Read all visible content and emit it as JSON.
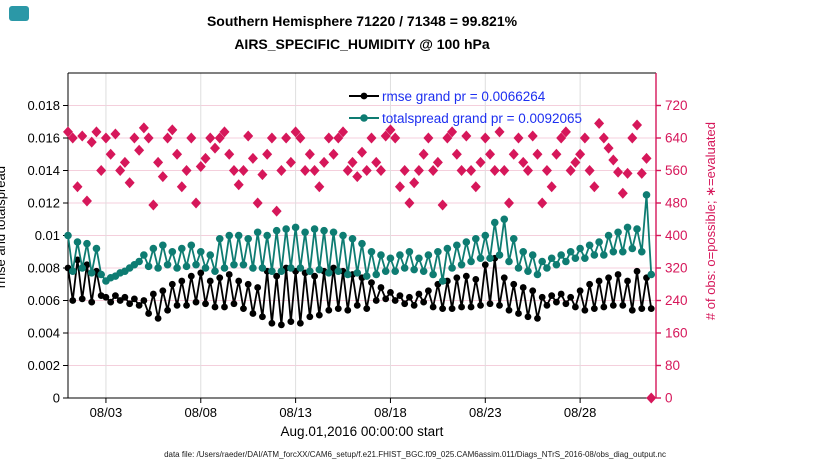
{
  "window": {
    "corner_badge_color": "#2b98a7"
  },
  "chart_data": {
    "type": "line",
    "title": "Southern Hemisphere 71220 / 71348 = 99.821%",
    "subtitle": "AIRS_SPECIFIC_HUMIDITY @ 100 hPa",
    "xlabel": "Aug.01,2016 00:00:00 start",
    "ylabel_left": "rmse and totalspread",
    "ylabel_right": "# of obs: o=possible; ∗=evaluated",
    "caption": "data file: /Users/raeder/DAI/ATM_forcXX/CAM6_setup/f.e21.FHIST_BGC.f09_025.CAM6assim.011/Diags_NTrS_2016-08/obs_diag_output.nc",
    "x_start": "Aug 1, 2016 00:00",
    "time_step_days": 0.25,
    "xlim_days": 31,
    "grid": true,
    "legend_position": "top-center-inside",
    "legend_text_color": "#1d2ff0",
    "axis_color_left": "#000000",
    "axis_color_right": "#d6175a",
    "grid_color_horizontal": "#f4cfdc",
    "grid_color_vertical": "#dedede",
    "left_ylim": [
      0,
      0.02
    ],
    "left_ytick_values": [
      0,
      0.002,
      0.004,
      0.006,
      0.008,
      0.01,
      0.012,
      0.014,
      0.016,
      0.018
    ],
    "left_ytick_labels": [
      "0",
      "0.002",
      "0.004",
      "0.006",
      "0.008",
      "0.01",
      "0.012",
      "0.014",
      "0.016",
      "0.018"
    ],
    "right_ylim": [
      0,
      800
    ],
    "right_ytick_values": [
      0,
      80,
      160,
      240,
      320,
      400,
      480,
      560,
      640,
      720
    ],
    "right_ytick_labels": [
      "0",
      "80",
      "160",
      "240",
      "320",
      "400",
      "480",
      "560",
      "640",
      "720"
    ],
    "xticks": [
      {
        "day": 2,
        "label": "08/03"
      },
      {
        "day": 7,
        "label": "08/08"
      },
      {
        "day": 12,
        "label": "08/13"
      },
      {
        "day": 17,
        "label": "08/18"
      },
      {
        "day": 22,
        "label": "08/23"
      },
      {
        "day": 27,
        "label": "08/28"
      }
    ],
    "series": [
      {
        "name": "rmse",
        "label": "rmse grand pr = 0.0066264",
        "color": "#000000",
        "marker": "circle",
        "marker_size": 3.4,
        "axis": "left",
        "values": [
          0.008,
          0.006,
          0.0085,
          0.0061,
          0.0082,
          0.0059,
          0.0078,
          0.0063,
          0.0062,
          0.0059,
          0.0063,
          0.006,
          0.0062,
          0.0058,
          0.0061,
          0.0057,
          0.006,
          0.0052,
          0.0064,
          0.0049,
          0.0066,
          0.0054,
          0.007,
          0.0057,
          0.0072,
          0.0057,
          0.0075,
          0.0059,
          0.0077,
          0.0058,
          0.0072,
          0.0056,
          0.0074,
          0.0056,
          0.0076,
          0.0058,
          0.0072,
          0.0055,
          0.007,
          0.0052,
          0.0068,
          0.005,
          0.0078,
          0.0046,
          0.0075,
          0.0045,
          0.008,
          0.0047,
          0.0078,
          0.0046,
          0.0077,
          0.005,
          0.0075,
          0.0051,
          0.0078,
          0.0054,
          0.008,
          0.0055,
          0.0078,
          0.0054,
          0.0076,
          0.0057,
          0.0074,
          0.0055,
          0.0071,
          0.006,
          0.0068,
          0.0061,
          0.0065,
          0.006,
          0.0063,
          0.0058,
          0.0062,
          0.0057,
          0.0064,
          0.0059,
          0.0066,
          0.0056,
          0.007,
          0.0055,
          0.0072,
          0.0055,
          0.0074,
          0.0056,
          0.0075,
          0.0056,
          0.0073,
          0.0057,
          0.0082,
          0.0058,
          0.0086,
          0.0057,
          0.0074,
          0.0054,
          0.007,
          0.0052,
          0.0068,
          0.005,
          0.0066,
          0.0049,
          0.0062,
          0.0057,
          0.0063,
          0.0059,
          0.0064,
          0.0058,
          0.0062,
          0.0056,
          0.0066,
          0.0054,
          0.007,
          0.0055,
          0.0072,
          0.0056,
          0.0074,
          0.0057,
          0.0076,
          0.0057,
          0.0072,
          0.0054,
          0.0078,
          0.0055,
          0.0074,
          0.0055
        ]
      },
      {
        "name": "totalspread",
        "label": "totalspread grand pr = 0.0092065",
        "color": "#0e7c72",
        "marker": "circle",
        "marker_size": 3.8,
        "axis": "left",
        "values": [
          0.01,
          0.0078,
          0.0096,
          0.008,
          0.0095,
          0.0077,
          0.0092,
          0.0076,
          0.0072,
          0.0074,
          0.0075,
          0.0077,
          0.0078,
          0.008,
          0.0082,
          0.0084,
          0.0088,
          0.0081,
          0.0092,
          0.008,
          0.0094,
          0.0082,
          0.009,
          0.008,
          0.0092,
          0.0081,
          0.0094,
          0.0082,
          0.009,
          0.008,
          0.0088,
          0.0078,
          0.0098,
          0.008,
          0.01,
          0.0082,
          0.01,
          0.0082,
          0.0098,
          0.008,
          0.0102,
          0.008,
          0.01,
          0.0078,
          0.0103,
          0.0078,
          0.0104,
          0.008,
          0.0105,
          0.008,
          0.0102,
          0.0078,
          0.0104,
          0.0079,
          0.0103,
          0.0077,
          0.0102,
          0.0078,
          0.01,
          0.0076,
          0.0098,
          0.0077,
          0.0095,
          0.0075,
          0.009,
          0.0076,
          0.0088,
          0.0078,
          0.0086,
          0.0078,
          0.0088,
          0.008,
          0.009,
          0.0079,
          0.0086,
          0.0078,
          0.0088,
          0.0076,
          0.009,
          0.0072,
          0.0092,
          0.008,
          0.0094,
          0.0082,
          0.0096,
          0.0084,
          0.0098,
          0.0086,
          0.01,
          0.0086,
          0.0108,
          0.0088,
          0.011,
          0.0084,
          0.0098,
          0.008,
          0.009,
          0.0078,
          0.0088,
          0.0076,
          0.0084,
          0.008,
          0.0086,
          0.0082,
          0.0088,
          0.0084,
          0.009,
          0.0086,
          0.0092,
          0.0086,
          0.0094,
          0.0088,
          0.0096,
          0.0088,
          0.01,
          0.009,
          0.0102,
          0.009,
          0.0105,
          0.0092,
          0.0104,
          0.009,
          0.0125,
          0.0076
        ]
      },
      {
        "name": "num-obs",
        "label": "# of obs (o=possible, ∗=evaluated)",
        "color": "#d6175a",
        "marker": "diamond",
        "marker_size": 5,
        "axis": "right",
        "values": [
          655,
          640,
          520,
          645,
          485,
          630,
          655,
          560,
          640,
          600,
          650,
          560,
          580,
          530,
          640,
          610,
          665,
          640,
          475,
          580,
          545,
          640,
          660,
          600,
          520,
          560,
          640,
          480,
          570,
          590,
          640,
          615,
          640,
          655,
          600,
          560,
          525,
          560,
          645,
          590,
          480,
          550,
          600,
          640,
          460,
          560,
          640,
          580,
          655,
          640,
          560,
          600,
          560,
          520,
          580,
          640,
          600,
          640,
          655,
          560,
          580,
          545,
          605,
          560,
          640,
          580,
          560,
          645,
          660,
          640,
          520,
          560,
          480,
          530,
          560,
          600,
          640,
          560,
          580,
          475,
          640,
          655,
          600,
          560,
          645,
          560,
          520,
          580,
          640,
          600,
          560,
          655,
          560,
          480,
          600,
          640,
          580,
          560,
          645,
          600,
          480,
          560,
          520,
          600,
          640,
          655,
          560,
          580,
          600,
          640,
          560,
          520,
          676,
          640,
          615,
          586,
          556,
          504,
          553,
          640,
          672,
          553,
          590,
          0
        ]
      }
    ]
  }
}
